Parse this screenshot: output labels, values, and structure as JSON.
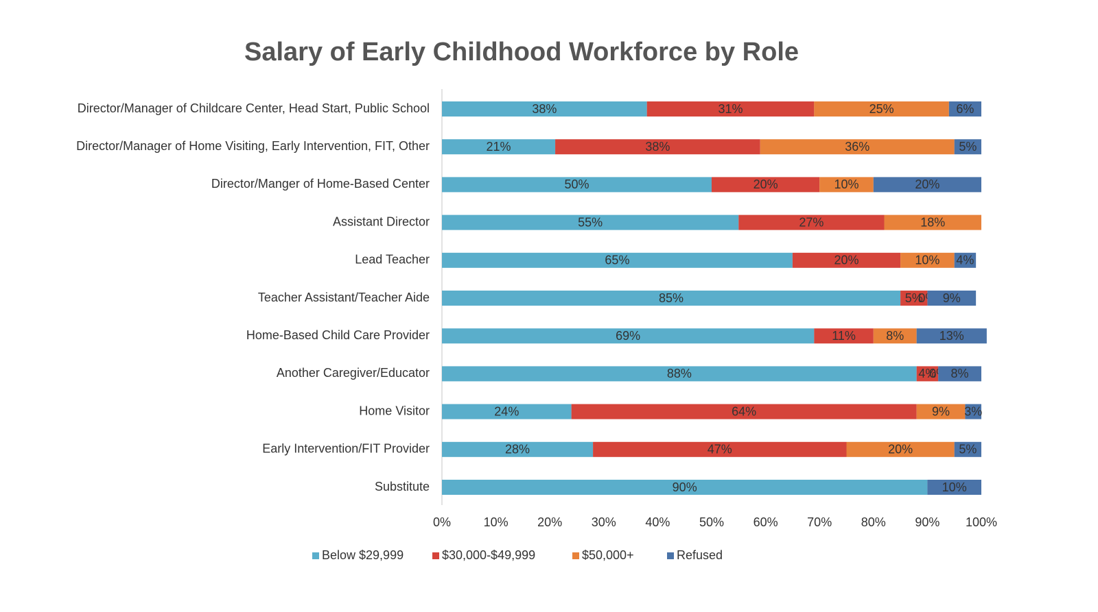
{
  "chart_data": {
    "type": "stacked-bar-horizontal",
    "title": "Salary of Early Childhood Workforce by Role",
    "categories": [
      "Director/Manager of Childcare Center, Head Start, Public School",
      "Director/Manager of Home Visiting, Early Intervention, FIT, Other",
      "Director/Manger of Home-Based Center",
      "Assistant Director",
      "Lead Teacher",
      "Teacher Assistant/Teacher Aide",
      "Home-Based Child Care Provider",
      "Another Caregiver/Educator",
      "Home Visitor",
      "Early Intervention/FIT Provider",
      "Substitute"
    ],
    "series": [
      {
        "name": "Below $29,999",
        "color": "#5aaecb",
        "values": [
          38,
          21,
          50,
          55,
          65,
          85,
          69,
          88,
          24,
          28,
          90
        ],
        "value_labels": [
          "38%",
          "21%",
          "50%",
          "55%",
          "65%",
          "85%",
          "69%",
          "88%",
          "24%",
          "28%",
          "90%"
        ]
      },
      {
        "name": "$30,000-$49,999",
        "color": "#d5443a",
        "values": [
          31,
          38,
          20,
          27,
          20,
          5,
          11,
          4,
          64,
          47,
          0
        ],
        "value_labels": [
          "31%",
          "38%",
          "20%",
          "27%",
          "20%",
          "5%",
          "11%",
          "4%",
          "64%",
          "47%",
          null
        ]
      },
      {
        "name": "$50,000+",
        "color": "#e8823a",
        "values": [
          25,
          36,
          10,
          18,
          10,
          0,
          8,
          0,
          9,
          20,
          0
        ],
        "value_labels": [
          "25%",
          "36%",
          "10%",
          "18%",
          "10%",
          "0%",
          "8%",
          "0%",
          "9%",
          "20%",
          null
        ]
      },
      {
        "name": "Refused",
        "color": "#4a73a8",
        "values": [
          6,
          5,
          20,
          0,
          4,
          9,
          13,
          8,
          3,
          5,
          10
        ],
        "value_labels": [
          "6%",
          "5%",
          "20%",
          null,
          "4%",
          "9%",
          "13%",
          "8%",
          "3%",
          "5%",
          "10%"
        ]
      }
    ],
    "xlim": [
      0,
      100
    ],
    "xticks": [
      {
        "value": 0,
        "label": "0%"
      },
      {
        "value": 10,
        "label": "10%"
      },
      {
        "value": 20,
        "label": "20%"
      },
      {
        "value": 30,
        "label": "30%"
      },
      {
        "value": 40,
        "label": "40%"
      },
      {
        "value": 50,
        "label": "50%"
      },
      {
        "value": 60,
        "label": "60%"
      },
      {
        "value": 70,
        "label": "70%"
      },
      {
        "value": 80,
        "label": "80%"
      },
      {
        "value": 90,
        "label": "90%"
      },
      {
        "value": 100,
        "label": "100%"
      }
    ],
    "legend": "bottom"
  }
}
